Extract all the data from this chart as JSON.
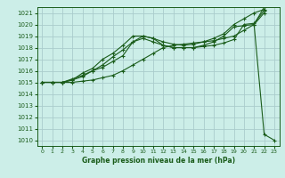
{
  "bg_color": "#cceee8",
  "plot_bg": "#cceee8",
  "grid_color": "#aacccc",
  "line_color": "#1a5c1a",
  "title": "Graphe pression niveau de la mer (hPa)",
  "xlim": [
    -0.5,
    23.5
  ],
  "ylim": [
    1009.5,
    1021.5
  ],
  "yticks": [
    1010,
    1011,
    1012,
    1013,
    1014,
    1015,
    1016,
    1017,
    1018,
    1019,
    1020,
    1021
  ],
  "xticks": [
    0,
    1,
    2,
    3,
    4,
    5,
    6,
    7,
    8,
    9,
    10,
    11,
    12,
    13,
    14,
    15,
    16,
    17,
    18,
    19,
    20,
    21,
    22,
    23
  ],
  "series": [
    {
      "x": [
        0,
        1,
        2,
        3,
        4,
        5,
        6,
        7,
        8,
        9,
        10,
        11,
        12,
        13,
        14,
        15,
        16,
        17,
        18,
        19,
        20,
        21,
        22
      ],
      "y": [
        1015.0,
        1015.0,
        1015.0,
        1015.0,
        1015.1,
        1015.2,
        1015.4,
        1015.6,
        1016.0,
        1016.5,
        1017.0,
        1017.5,
        1018.0,
        1018.2,
        1018.3,
        1018.4,
        1018.5,
        1018.6,
        1018.8,
        1019.0,
        1019.5,
        1020.0,
        1021.0
      ],
      "marker": true
    },
    {
      "x": [
        0,
        1,
        2,
        3,
        4,
        5,
        6,
        7,
        8,
        9,
        10,
        11,
        12,
        13,
        14,
        15,
        16,
        17,
        18,
        19,
        20,
        21,
        22
      ],
      "y": [
        1015.0,
        1015.0,
        1015.0,
        1015.2,
        1015.5,
        1016.0,
        1016.3,
        1016.8,
        1017.3,
        1018.5,
        1018.8,
        1018.5,
        1018.2,
        1018.0,
        1018.0,
        1018.0,
        1018.1,
        1018.2,
        1018.4,
        1018.7,
        1020.0,
        1020.1,
        1021.2
      ],
      "marker": true
    },
    {
      "x": [
        0,
        1,
        2,
        3,
        4,
        5,
        6,
        7,
        8,
        9,
        10,
        11,
        12,
        13,
        14,
        15,
        16,
        17,
        18,
        19,
        20,
        21,
        22
      ],
      "y": [
        1015.0,
        1015.0,
        1015.0,
        1015.2,
        1015.8,
        1016.2,
        1017.0,
        1017.5,
        1018.2,
        1019.0,
        1019.0,
        1018.8,
        1018.2,
        1018.0,
        1018.0,
        1018.0,
        1018.2,
        1018.5,
        1019.0,
        1019.8,
        1019.9,
        1020.0,
        1021.5
      ],
      "marker": true
    },
    {
      "x": [
        0,
        1,
        2,
        3,
        4,
        5,
        6,
        7,
        8,
        9,
        10,
        11,
        12,
        13,
        14,
        15,
        16,
        17,
        18,
        19,
        20,
        21,
        22
      ],
      "y": [
        1015.0,
        1015.0,
        1015.0,
        1015.3,
        1015.6,
        1016.0,
        1016.5,
        1017.2,
        1017.8,
        1018.5,
        1019.0,
        1018.8,
        1018.5,
        1018.3,
        1018.2,
        1018.3,
        1018.5,
        1018.8,
        1019.2,
        1020.0,
        1020.5,
        1021.0,
        1021.3
      ],
      "marker": true
    },
    {
      "x": [
        21,
        22,
        23
      ],
      "y": [
        1020.0,
        1010.5,
        1010.0
      ],
      "marker": true
    }
  ]
}
